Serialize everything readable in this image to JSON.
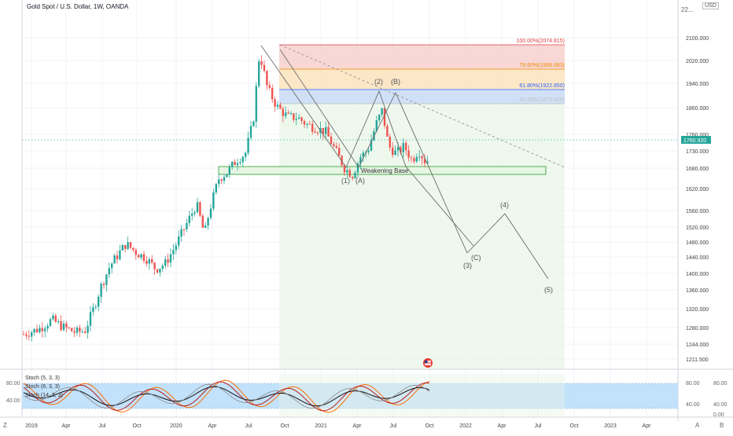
{
  "header": {
    "title": "Gold Spot / U.S. Dollar, 1W, OANDA",
    "currency": "USD",
    "price_label": "1760.920",
    "bottom_left": "Z",
    "bottom_right_a": "A",
    "bottom_right_b": "B"
  },
  "colors": {
    "up": "#26a69a",
    "down": "#ef5350",
    "fib_100": "#e04040",
    "fib_786": "#f08c00",
    "fib_618": "#2962ff",
    "fib_50": "#a0a0a0",
    "wave": "#6b6b6b",
    "stoch_k": "#ff6d00",
    "stoch_d": "#b71c1c",
    "stoch_band": "#bbdefb"
  },
  "price_axis": {
    "ticks": [
      "2100.000",
      "2020.000",
      "1940.000",
      "1860.000",
      "1780.000",
      "1730.000",
      "1680.000",
      "1620.000",
      "1560.000",
      "1520.000",
      "1480.000",
      "1440.000",
      "1400.000",
      "1360.000",
      "1320.000",
      "1280.000",
      "1244.000",
      "1211.500"
    ],
    "top_tick": "22..."
  },
  "time_axis": {
    "ticks": [
      "2019",
      "Apr",
      "Jul",
      "Oct",
      "2020",
      "Apr",
      "Jul",
      "Oct",
      "2021",
      "Apr",
      "Jul",
      "Oct",
      "2022",
      "Apr",
      "Jul",
      "Oct",
      "2023",
      "Apr"
    ]
  },
  "fib_levels": [
    {
      "label": "100.00%(2074.815)",
      "value": 2074.815,
      "color": "#e04040"
    },
    {
      "label": "78.60%(1989.683)",
      "value": 1989.683,
      "color": "#f08c00"
    },
    {
      "label": "61.80%(1922.850)",
      "value": 1922.85,
      "color": "#2962ff"
    },
    {
      "label": "50.00%(1875.809)",
      "value": 1875.809,
      "color": "#b0b0b0"
    }
  ],
  "annotations": {
    "base_label": "Weakening Base",
    "waves": [
      "(1)",
      "(A)",
      "(2)",
      "(B)",
      "(3)",
      "(C)",
      "(4)",
      "(5)"
    ]
  },
  "oscillator": {
    "legend": [
      "Stoch (5, 3, 3)",
      "Stoch (8, 3, 3)",
      "Stoch (14, 3, 3)"
    ],
    "ticks": [
      "80.00",
      "40.00",
      "80.00",
      "40.00",
      "0.00"
    ]
  },
  "chart_data": {
    "type": "candlestick",
    "title": "Gold Spot / U.S. Dollar, 1W, OANDA",
    "ylim": [
      1211.5,
      2200
    ],
    "x_range": [
      "2019",
      "2023 Apr"
    ],
    "key_points": [
      {
        "label": "2019 start",
        "value": 1280
      },
      {
        "label": "2020 Aug high",
        "value": 2074.815
      },
      {
        "label": "2021 Mar low",
        "value": 1677
      },
      {
        "label": "2021 Jun high",
        "value": 1916
      },
      {
        "label": "last",
        "value": 1760.92
      }
    ],
    "series": [
      {
        "name": "projection_path",
        "points": [
          {
            "label": "(3)/(C)",
            "value": 1450
          },
          {
            "label": "(4)",
            "value": 1550
          },
          {
            "label": "(5)",
            "value": 1390
          }
        ]
      }
    ],
    "grid": true
  }
}
